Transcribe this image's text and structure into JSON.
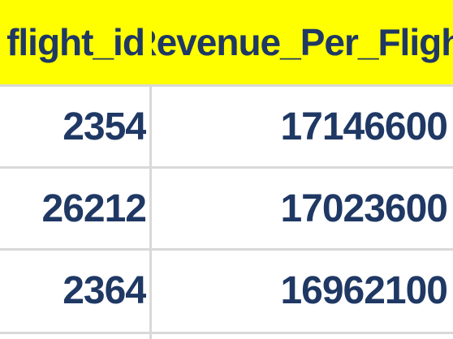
{
  "table": {
    "columns": [
      "flight_id",
      "Revenue_Per_Flight"
    ],
    "rows": [
      [
        "2354",
        "17146600"
      ],
      [
        "26212",
        "17023600"
      ],
      [
        "2364",
        "16962100"
      ]
    ]
  },
  "colors": {
    "header_background": "#ffff00",
    "text": "#1f3864",
    "grid": "#d9d9d9"
  }
}
